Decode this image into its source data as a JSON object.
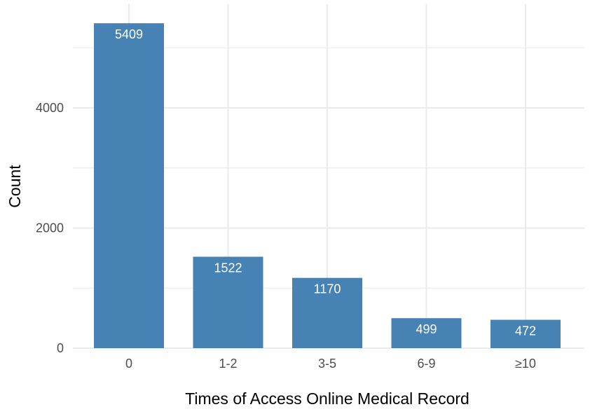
{
  "chart_data": {
    "type": "bar",
    "title": "",
    "xlabel": "Times of Access Online Medical Record",
    "ylabel": "Count",
    "categories": [
      "0",
      "1-2",
      "3-5",
      "6-9",
      "≥10"
    ],
    "values": [
      5409,
      1522,
      1170,
      499,
      472
    ],
    "data_labels": [
      "5409",
      "1522",
      "1170",
      "499",
      "472"
    ],
    "ylim": [
      0,
      5600
    ],
    "yticks": [
      0,
      2000,
      4000
    ],
    "ytick_labels": [
      "0",
      "2000",
      "4000"
    ],
    "y_minor_gridlines": [
      1000,
      3000,
      5000
    ],
    "grid": true,
    "legend": "none",
    "bar_color": "#4682b4",
    "grid_color": "#ebebeb",
    "background": "#ffffff"
  }
}
